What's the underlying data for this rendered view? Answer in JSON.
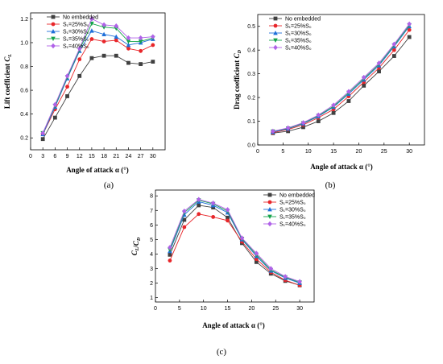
{
  "figure": {
    "panel_labels": [
      "(a)",
      "(b)",
      "(c)"
    ]
  },
  "styles": {
    "colors": [
      "#404040",
      "#e8262a",
      "#1e6fd9",
      "#13a34a",
      "#b062e8"
    ],
    "markers": [
      "square",
      "circle",
      "triangle-up",
      "triangle-down",
      "diamond"
    ]
  },
  "chart_data": [
    {
      "type": "line",
      "panel": "(a)",
      "xlabel": "Angle of attack α (°)",
      "ylabel": "Lift coefficient C_L",
      "xlim": [
        0,
        33
      ],
      "ylim": [
        0.1,
        1.25
      ],
      "xticks": [
        0,
        3,
        6,
        9,
        12,
        15,
        18,
        21,
        24,
        27,
        30
      ],
      "yticks": [
        0.2,
        0.4,
        0.6,
        0.8,
        1.0,
        1.2
      ],
      "ytick_labels": [
        "0.2",
        "0.4",
        "0.6",
        "0.8",
        "1.0",
        "1.2"
      ],
      "x": [
        3,
        6,
        9,
        12,
        15,
        18,
        21,
        24,
        27,
        30
      ],
      "legend_position": "top-left",
      "series": [
        {
          "name": "No embedded",
          "values": [
            0.19,
            0.37,
            0.55,
            0.72,
            0.87,
            0.89,
            0.89,
            0.83,
            0.82,
            0.84
          ]
        },
        {
          "name": "S₁=25%S₀",
          "values": [
            0.23,
            0.44,
            0.63,
            0.86,
            1.03,
            1.01,
            1.02,
            0.95,
            0.93,
            0.98
          ]
        },
        {
          "name": "S₁=30%S₀",
          "values": [
            0.23,
            0.46,
            0.7,
            0.93,
            1.1,
            1.07,
            1.05,
            0.98,
            1.0,
            1.03
          ]
        },
        {
          "name": "S₁=35%S₀",
          "values": [
            0.24,
            0.47,
            0.71,
            0.94,
            1.16,
            1.13,
            1.12,
            1.01,
            1.01,
            1.04
          ]
        },
        {
          "name": "S₁=40%S₀",
          "values": [
            0.24,
            0.48,
            0.72,
            0.95,
            1.2,
            1.15,
            1.14,
            1.04,
            1.04,
            1.05
          ]
        }
      ]
    },
    {
      "type": "line",
      "panel": "(b)",
      "xlabel": "Angle of attack α (°)",
      "ylabel": "Drag coefficient C_D",
      "xlim": [
        0,
        33
      ],
      "ylim": [
        0,
        0.55
      ],
      "xticks": [
        0,
        5,
        10,
        15,
        20,
        25,
        30
      ],
      "yticks": [
        0.0,
        0.1,
        0.2,
        0.3,
        0.4,
        0.5
      ],
      "ytick_labels": [
        "0.0",
        "0.1",
        "0.2",
        "0.3",
        "0.4",
        "0.5"
      ],
      "x": [
        3,
        6,
        9,
        12,
        15,
        18,
        21,
        24,
        27,
        30
      ],
      "legend_position": "top-left",
      "series": [
        {
          "name": "No embedded",
          "values": [
            0.05,
            0.058,
            0.075,
            0.1,
            0.135,
            0.185,
            0.25,
            0.31,
            0.375,
            0.455
          ]
        },
        {
          "name": "S₁=25%S₀",
          "values": [
            0.052,
            0.065,
            0.085,
            0.115,
            0.15,
            0.205,
            0.265,
            0.325,
            0.4,
            0.485
          ]
        },
        {
          "name": "S₁=30%S₀",
          "values": [
            0.055,
            0.068,
            0.09,
            0.12,
            0.16,
            0.215,
            0.275,
            0.335,
            0.415,
            0.5
          ]
        },
        {
          "name": "S₁=35%S₀",
          "values": [
            0.057,
            0.07,
            0.092,
            0.123,
            0.163,
            0.22,
            0.28,
            0.34,
            0.42,
            0.505
          ]
        },
        {
          "name": "S₁=40%S₀",
          "values": [
            0.058,
            0.072,
            0.094,
            0.126,
            0.168,
            0.225,
            0.285,
            0.345,
            0.425,
            0.51
          ]
        }
      ]
    },
    {
      "type": "line",
      "panel": "(c)",
      "xlabel": "Angle of attack α (°)",
      "ylabel": "C_L/C_D",
      "xlim": [
        0,
        33
      ],
      "ylim": [
        0.7,
        8.4
      ],
      "xticks": [
        0,
        5,
        10,
        15,
        20,
        25,
        30
      ],
      "yticks": [
        1,
        2,
        3,
        4,
        5,
        6,
        7,
        8
      ],
      "ytick_labels": [
        "1",
        "2",
        "3",
        "4",
        "5",
        "6",
        "7",
        "8"
      ],
      "x": [
        3,
        6,
        9,
        12,
        15,
        18,
        21,
        24,
        27,
        30
      ],
      "legend_position": "top-right",
      "series": [
        {
          "name": "No embedded",
          "values": [
            3.95,
            6.35,
            7.35,
            7.2,
            6.5,
            4.75,
            3.45,
            2.65,
            2.15,
            1.85
          ]
        },
        {
          "name": "S₁=25%S₀",
          "values": [
            3.55,
            5.85,
            6.75,
            6.55,
            6.3,
            4.85,
            3.65,
            2.75,
            2.2,
            1.85
          ]
        },
        {
          "name": "S₁=30%S₀",
          "values": [
            4.2,
            6.7,
            7.6,
            7.35,
            6.85,
            5.0,
            3.85,
            2.85,
            2.35,
            2.0
          ]
        },
        {
          "name": "S₁=35%S₀",
          "values": [
            4.3,
            6.85,
            7.7,
            7.45,
            6.95,
            5.05,
            3.95,
            2.9,
            2.4,
            2.05
          ]
        },
        {
          "name": "S₁=40%S₀",
          "values": [
            4.45,
            6.95,
            7.75,
            7.5,
            7.05,
            5.1,
            4.05,
            3.0,
            2.45,
            2.1
          ]
        }
      ]
    }
  ]
}
